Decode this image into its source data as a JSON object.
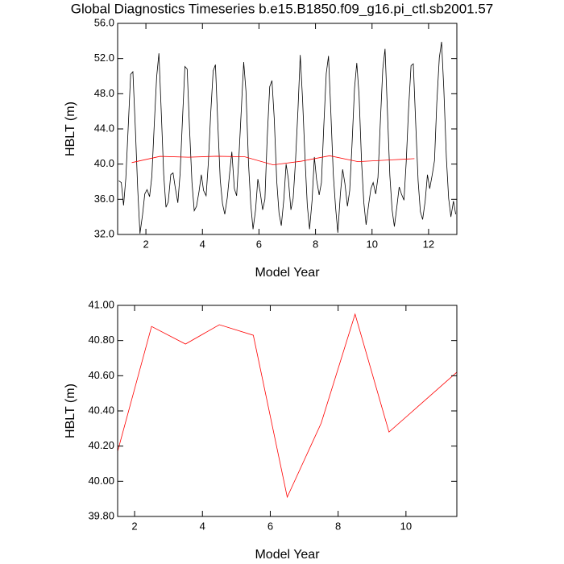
{
  "chart_data": [
    {
      "type": "line",
      "title": "Global Diagnostics Timeseries b.e15.B1850.f09_g16.pi_ctl.sb2001.57",
      "x_label": "Model Year",
      "y_label": "HBLT (m)",
      "xlim": [
        1,
        13
      ],
      "xticks": [
        2,
        4,
        6,
        8,
        10,
        12
      ],
      "ylim": [
        32,
        56
      ],
      "yticks": [
        {
          "value": 32,
          "label": "32.0"
        },
        {
          "value": 36,
          "label": "36.0"
        },
        {
          "value": 40,
          "label": "40.0"
        },
        {
          "value": 44,
          "label": "44.0"
        },
        {
          "value": 48,
          "label": "48.0"
        },
        {
          "value": 52,
          "label": "52.0"
        },
        {
          "value": 56,
          "label": "56.0"
        }
      ],
      "series": [
        {
          "color": "#000000",
          "x": [
            1.04,
            1.13,
            1.21,
            1.29,
            1.38,
            1.46,
            1.54,
            1.63,
            1.71,
            1.79,
            1.88,
            1.96,
            2.04,
            2.13,
            2.21,
            2.29,
            2.38,
            2.46,
            2.54,
            2.63,
            2.71,
            2.79,
            2.88,
            2.96,
            3.04,
            3.13,
            3.21,
            3.29,
            3.38,
            3.46,
            3.54,
            3.63,
            3.71,
            3.79,
            3.88,
            3.96,
            4.04,
            4.13,
            4.21,
            4.29,
            4.38,
            4.46,
            4.54,
            4.63,
            4.71,
            4.79,
            4.88,
            4.96,
            5.04,
            5.13,
            5.21,
            5.29,
            5.38,
            5.46,
            5.54,
            5.63,
            5.71,
            5.79,
            5.88,
            5.96,
            6.04,
            6.13,
            6.21,
            6.29,
            6.38,
            6.46,
            6.54,
            6.63,
            6.71,
            6.79,
            6.88,
            6.96,
            7.04,
            7.13,
            7.21,
            7.29,
            7.38,
            7.46,
            7.54,
            7.63,
            7.71,
            7.79,
            7.88,
            7.96,
            8.04,
            8.13,
            8.21,
            8.29,
            8.38,
            8.46,
            8.54,
            8.63,
            8.71,
            8.79,
            8.88,
            8.96,
            9.04,
            9.13,
            9.21,
            9.29,
            9.38,
            9.46,
            9.54,
            9.63,
            9.71,
            9.79,
            9.88,
            9.96,
            10.04,
            10.13,
            10.21,
            10.29,
            10.38,
            10.46,
            10.54,
            10.63,
            10.71,
            10.79,
            10.88,
            10.96,
            11.04,
            11.13,
            11.21,
            11.29,
            11.38,
            11.46,
            11.54,
            11.63,
            11.71,
            11.79,
            11.88,
            11.96,
            12.04,
            12.13,
            12.21,
            12.29,
            12.38,
            12.46,
            12.54,
            12.63,
            12.71,
            12.79,
            12.88,
            12.96
          ],
          "values": [
            38.1,
            37.9,
            35.3,
            38.4,
            44.6,
            50.2,
            50.5,
            43.8,
            37.2,
            32.1,
            34.2,
            36.6,
            37.1,
            36.3,
            38.6,
            44.1,
            49.9,
            52.6,
            46.2,
            38.8,
            35.1,
            35.7,
            38.8,
            39.0,
            37.3,
            35.6,
            38.9,
            44.8,
            51.1,
            50.8,
            44.3,
            37.9,
            34.7,
            35.2,
            36.9,
            38.8,
            37.0,
            36.4,
            40.2,
            45.6,
            50.6,
            51.3,
            44.9,
            38.2,
            35.5,
            34.3,
            36.2,
            38.9,
            41.4,
            37.2,
            36.4,
            40.8,
            46.5,
            51.6,
            48.3,
            40.1,
            35.4,
            32.6,
            34.8,
            38.3,
            36.9,
            34.8,
            36.0,
            42.9,
            48.8,
            49.5,
            45.2,
            38.0,
            34.4,
            33.0,
            36.0,
            40.0,
            38.3,
            34.8,
            36.1,
            40.2,
            46.2,
            52.4,
            47.5,
            40.6,
            35.3,
            32.6,
            35.9,
            40.8,
            38.2,
            36.5,
            37.9,
            44.1,
            50.3,
            52.3,
            46.1,
            38.8,
            35.1,
            32.2,
            36.6,
            39.4,
            37.8,
            35.2,
            37.0,
            42.1,
            48.6,
            51.5,
            47.9,
            40.2,
            35.6,
            33.1,
            35.4,
            37.2,
            37.9,
            36.6,
            38.5,
            44.5,
            50.8,
            53.1,
            46.4,
            38.7,
            34.8,
            32.9,
            35.2,
            37.4,
            36.6,
            35.9,
            40.3,
            46.1,
            51.2,
            51.4,
            45.0,
            38.1,
            34.6,
            33.7,
            35.8,
            38.8,
            37.2,
            38.8,
            40.4,
            46.9,
            52.1,
            53.9,
            48.5,
            40.7,
            36.1,
            34.0,
            35.8,
            34.3
          ]
        },
        {
          "color": "#ff0000",
          "x": [
            1.5,
            2.5,
            3.5,
            4.5,
            5.5,
            6.5,
            7.5,
            8.5,
            9.5,
            10.5,
            11.5
          ],
          "values": [
            40.17,
            40.88,
            40.78,
            40.89,
            40.83,
            39.91,
            40.33,
            40.95,
            40.28,
            40.45,
            40.62
          ]
        }
      ]
    },
    {
      "type": "line",
      "x_label": "Model Year",
      "y_label": "HBLT (m)",
      "xlim": [
        1.5,
        11.5
      ],
      "xticks": [
        2,
        4,
        6,
        8,
        10
      ],
      "ylim": [
        39.8,
        41.0
      ],
      "yticks": [
        {
          "value": 39.8,
          "label": "39.80"
        },
        {
          "value": 40.0,
          "label": "40.00"
        },
        {
          "value": 40.2,
          "label": "40.20"
        },
        {
          "value": 40.4,
          "label": "40.40"
        },
        {
          "value": 40.6,
          "label": "40.60"
        },
        {
          "value": 40.8,
          "label": "40.80"
        },
        {
          "value": 41.0,
          "label": "41.00"
        }
      ],
      "series": [
        {
          "color": "#ff0000",
          "x": [
            1.5,
            2.5,
            3.5,
            4.5,
            5.5,
            6.5,
            7.5,
            8.5,
            9.5,
            10.5,
            11.5
          ],
          "values": [
            40.17,
            40.88,
            40.78,
            40.89,
            40.83,
            39.91,
            40.33,
            40.95,
            40.28,
            40.45,
            40.62
          ]
        }
      ]
    }
  ]
}
